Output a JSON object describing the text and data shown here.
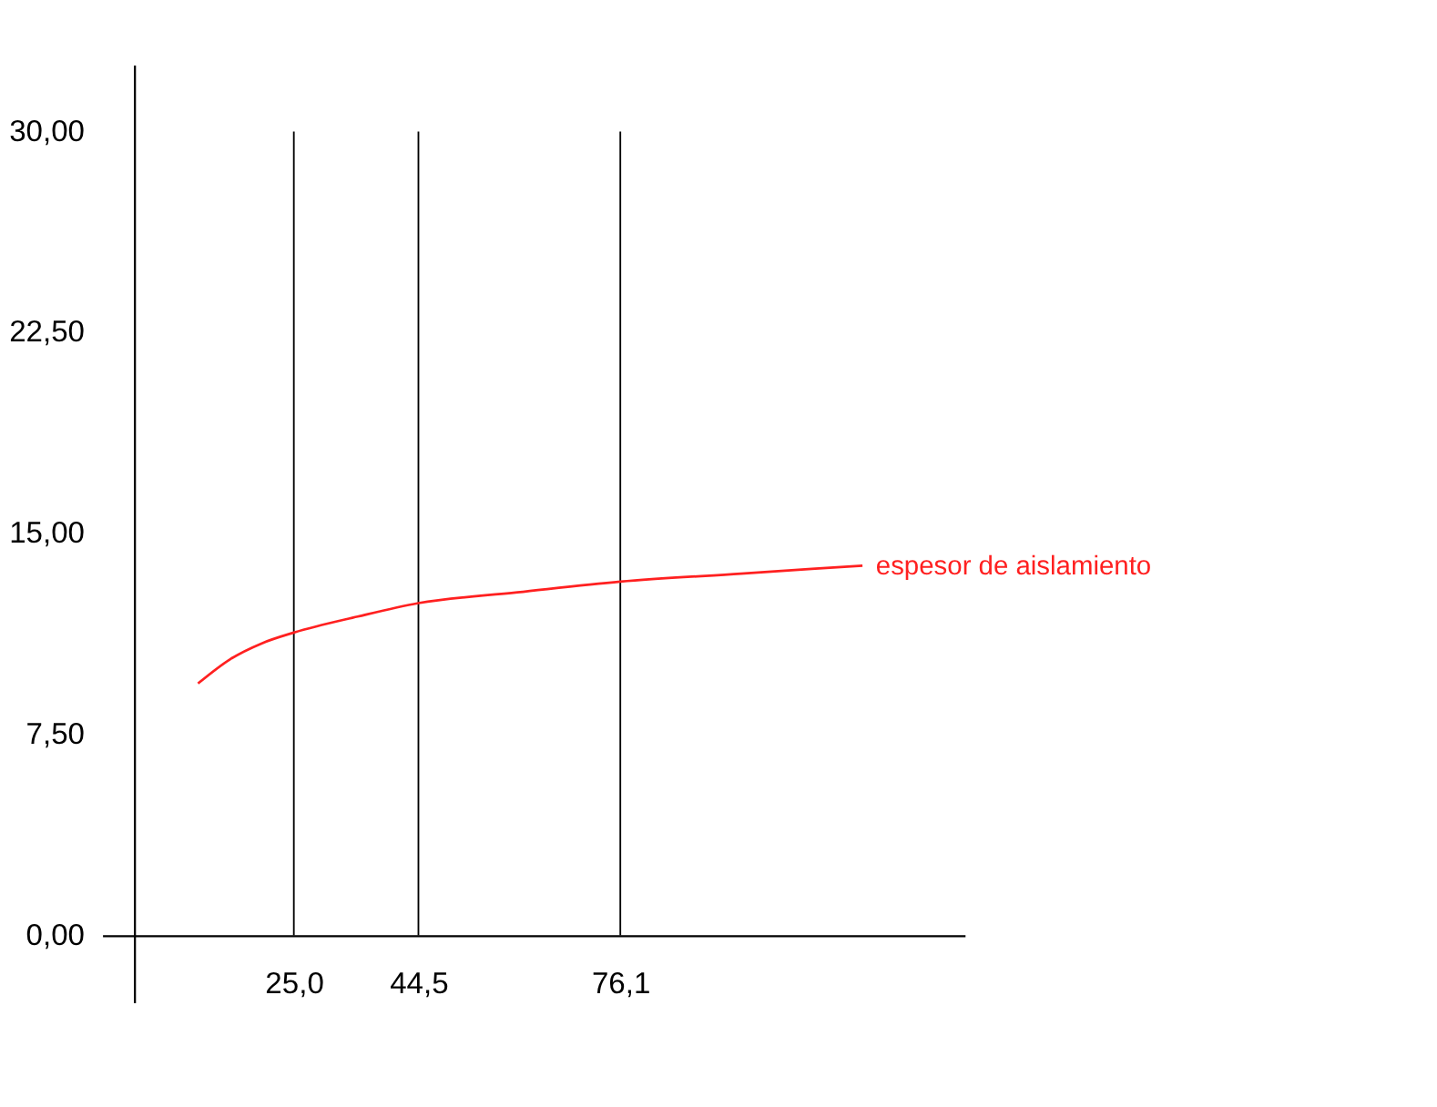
{
  "chart_data": {
    "type": "line",
    "xlim": [
      -5,
      130
    ],
    "ylim": [
      -2.5,
      32.5
    ],
    "xticks": [
      {
        "value": 25,
        "label": "25,0"
      },
      {
        "value": 44.5,
        "label": "44,5"
      },
      {
        "value": 76.1,
        "label": "76,1"
      }
    ],
    "yticks": [
      {
        "value": 0,
        "label": "0,00"
      },
      {
        "value": 7.5,
        "label": "7,50"
      },
      {
        "value": 15,
        "label": "15,00"
      },
      {
        "value": 22.5,
        "label": "22,50"
      },
      {
        "value": 30,
        "label": "30,00"
      }
    ],
    "grid": "x",
    "legend": false,
    "marker": "none",
    "line_style": "solid",
    "series": [
      {
        "name": "espesor de aislamiento",
        "color": "#ff2020",
        "x": [
          10,
          15,
          20,
          25,
          35,
          44.5,
          60,
          76.1,
          95,
          114
        ],
        "values": [
          9.4,
          10.3,
          10.9,
          11.3,
          11.9,
          12.4,
          12.8,
          13.2,
          13.5,
          13.8
        ]
      }
    ]
  }
}
